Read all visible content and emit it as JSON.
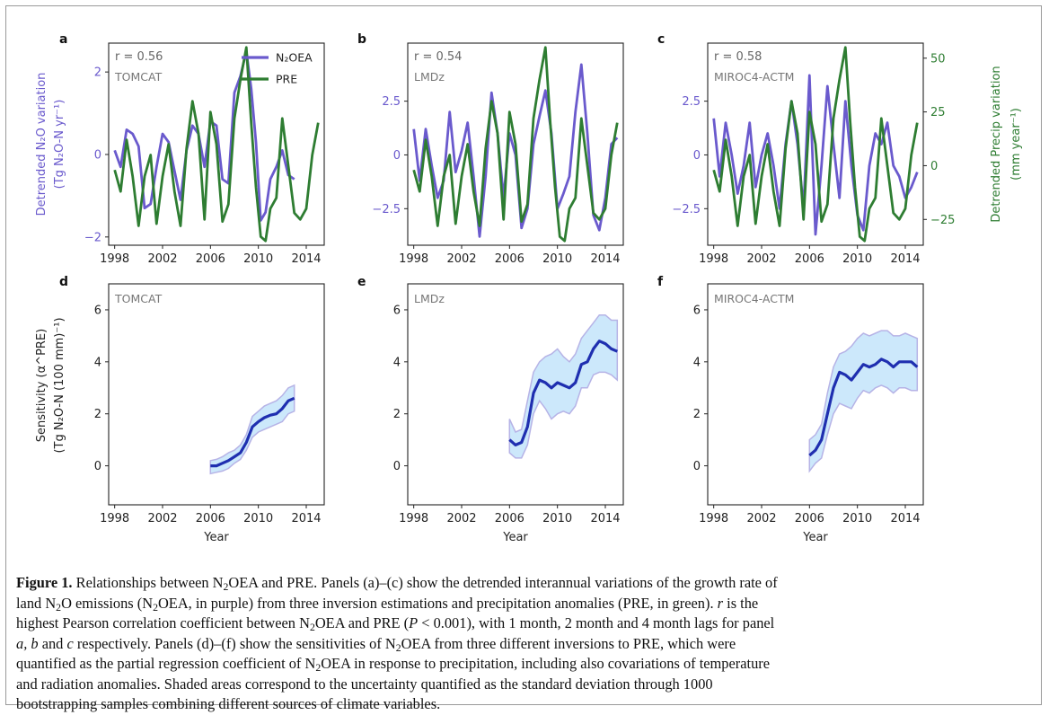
{
  "chart_data": [
    {
      "panel": "a",
      "type": "line",
      "model": "TOMCAT",
      "r_label": "r = 0.56",
      "ylabel_left": "Detrended N₂O variation",
      "ylabel_left_unit": "(Tg N₂O-N yr⁻¹)",
      "left_ylim": [
        -2.2,
        2.7
      ],
      "left_yticks": [
        -2,
        0,
        2
      ],
      "right_ylim": [
        -37,
        57
      ],
      "xlim": [
        1997.5,
        2015.5
      ],
      "xticks": [
        1998,
        2002,
        2006,
        2010,
        2014
      ],
      "legend": [
        {
          "name": "N₂OEA",
          "color": "#6a5acd"
        },
        {
          "name": "PRE",
          "color": "#2e7d32"
        }
      ],
      "series": [
        {
          "name": "N₂OEA",
          "axis": "left",
          "color": "#6a5acd",
          "x": [
            1998.0,
            1998.5,
            1999.0,
            1999.5,
            2000.0,
            2000.5,
            2001.0,
            2001.5,
            2002.0,
            2002.5,
            2003.0,
            2003.5,
            2004.0,
            2004.5,
            2005.0,
            2005.5,
            2006.0,
            2006.5,
            2007.0,
            2007.5,
            2008.0,
            2008.5,
            2009.0,
            2009.4,
            2009.8,
            2010.2,
            2010.6,
            2011.0,
            2011.5,
            2012.0,
            2012.5,
            2013.0
          ],
          "y": [
            0.1,
            -0.3,
            0.6,
            0.5,
            0.2,
            -1.3,
            -1.2,
            -0.3,
            0.5,
            0.3,
            -0.4,
            -1.1,
            0.1,
            0.7,
            0.5,
            -0.3,
            0.8,
            0.7,
            -0.6,
            -0.7,
            1.5,
            1.9,
            2.5,
            1.6,
            0.3,
            -1.6,
            -1.4,
            -0.6,
            -0.3,
            0.1,
            -0.5,
            -0.6
          ]
        },
        {
          "name": "PRE",
          "axis": "right",
          "color": "#2e7d32",
          "x": [
            1998.0,
            1998.5,
            1999.0,
            1999.5,
            2000.0,
            2000.5,
            2001.0,
            2001.5,
            2002.0,
            2002.5,
            2003.0,
            2003.5,
            2004.0,
            2004.5,
            2005.0,
            2005.5,
            2006.0,
            2006.5,
            2007.0,
            2007.5,
            2008.0,
            2008.5,
            2009.0,
            2009.4,
            2009.8,
            2010.2,
            2010.6,
            2011.0,
            2011.5,
            2012.0,
            2012.5,
            2013.0,
            2013.5,
            2014.0,
            2014.5,
            2015.0
          ],
          "y": [
            -2,
            -12,
            12,
            -5,
            -28,
            -5,
            5,
            -27,
            -5,
            10,
            -12,
            -28,
            8,
            30,
            15,
            -25,
            25,
            10,
            -26,
            -18,
            22,
            40,
            55,
            20,
            -10,
            -33,
            -35,
            -20,
            -15,
            22,
            0,
            -22,
            -25,
            -20,
            5,
            20
          ]
        }
      ]
    },
    {
      "panel": "b",
      "type": "line",
      "model": "LMDz",
      "r_label": "r = 0.54",
      "left_ylim": [
        -4.2,
        5.2
      ],
      "left_yticks": [
        -2.5,
        0.0,
        2.5
      ],
      "right_ylim": [
        -37,
        57
      ],
      "xlim": [
        1997.5,
        2015.5
      ],
      "xticks": [
        1998,
        2002,
        2006,
        2010,
        2014
      ],
      "series": [
        {
          "name": "N₂OEA",
          "axis": "left",
          "color": "#6a5acd",
          "x": [
            1998.0,
            1998.5,
            1999.0,
            1999.5,
            2000.0,
            2000.5,
            2001.0,
            2001.5,
            2002.0,
            2002.5,
            2003.0,
            2003.5,
            2004.0,
            2004.5,
            2005.0,
            2005.5,
            2006.0,
            2006.5,
            2007.0,
            2007.5,
            2008.0,
            2008.5,
            2009.0,
            2009.5,
            2010.0,
            2010.5,
            2011.0,
            2011.5,
            2012.0,
            2012.5,
            2013.0,
            2013.5,
            2014.0,
            2014.5,
            2015.0
          ],
          "y": [
            1.2,
            -1.2,
            1.2,
            -0.5,
            -2.0,
            -1.2,
            2.0,
            -0.8,
            0.2,
            1.5,
            -1.0,
            -3.8,
            -1.0,
            2.9,
            1.0,
            -2.0,
            1.0,
            0.0,
            -3.4,
            -2.5,
            0.5,
            1.8,
            3.0,
            1.0,
            -2.5,
            -1.8,
            -1.0,
            2.0,
            4.2,
            1.0,
            -2.8,
            -3.5,
            -2.0,
            0.5,
            0.8
          ]
        },
        {
          "name": "PRE",
          "axis": "right",
          "color": "#2e7d32",
          "x": [
            1998.0,
            1998.5,
            1999.0,
            1999.5,
            2000.0,
            2000.5,
            2001.0,
            2001.5,
            2002.0,
            2002.5,
            2003.0,
            2003.5,
            2004.0,
            2004.5,
            2005.0,
            2005.5,
            2006.0,
            2006.5,
            2007.0,
            2007.5,
            2008.0,
            2008.5,
            2009.0,
            2009.4,
            2009.8,
            2010.2,
            2010.6,
            2011.0,
            2011.5,
            2012.0,
            2012.5,
            2013.0,
            2013.5,
            2014.0,
            2014.5,
            2015.0
          ],
          "y": [
            -2,
            -12,
            12,
            -5,
            -28,
            -5,
            5,
            -27,
            -5,
            10,
            -12,
            -28,
            8,
            30,
            15,
            -25,
            25,
            10,
            -26,
            -18,
            22,
            40,
            55,
            20,
            -10,
            -33,
            -35,
            -20,
            -15,
            22,
            0,
            -22,
            -25,
            -20,
            5,
            20
          ]
        }
      ]
    },
    {
      "panel": "c",
      "type": "line",
      "model": "MIROC4-ACTM",
      "r_label": "r = 0.58",
      "ylabel_right": "Detrended Precip variation",
      "ylabel_right_unit": "(mm year⁻¹)",
      "left_ylim": [
        -4.2,
        5.2
      ],
      "left_yticks": [
        -2.5,
        0.0,
        2.5
      ],
      "right_ylim": [
        -37,
        57
      ],
      "right_yticks": [
        -25,
        0,
        25,
        50
      ],
      "xlim": [
        1997.5,
        2015.5
      ],
      "xticks": [
        1998,
        2002,
        2006,
        2010,
        2014
      ],
      "series": [
        {
          "name": "N₂OEA",
          "axis": "left",
          "color": "#6a5acd",
          "x": [
            1998.0,
            1998.5,
            1999.0,
            1999.5,
            2000.0,
            2000.5,
            2001.0,
            2001.5,
            2002.0,
            2002.5,
            2003.0,
            2003.5,
            2004.0,
            2004.5,
            2005.0,
            2005.5,
            2006.0,
            2006.5,
            2007.0,
            2007.5,
            2008.0,
            2008.5,
            2009.0,
            2009.5,
            2010.0,
            2010.5,
            2011.0,
            2011.5,
            2012.0,
            2012.5,
            2013.0,
            2013.5,
            2014.0,
            2014.5,
            2015.0
          ],
          "y": [
            1.7,
            -1.0,
            1.5,
            0.0,
            -1.8,
            -0.5,
            1.5,
            -1.5,
            0.0,
            1.0,
            -0.5,
            -2.5,
            0.5,
            2.5,
            0.5,
            -2.5,
            3.7,
            -3.7,
            -0.5,
            3.2,
            0.5,
            -2.0,
            2.5,
            -0.5,
            -2.8,
            -3.5,
            -0.5,
            1.0,
            0.5,
            1.5,
            -0.5,
            -1.0,
            -2.0,
            -1.5,
            -0.8
          ]
        },
        {
          "name": "PRE",
          "axis": "right",
          "color": "#2e7d32",
          "x": [
            1998.0,
            1998.5,
            1999.0,
            1999.5,
            2000.0,
            2000.5,
            2001.0,
            2001.5,
            2002.0,
            2002.5,
            2003.0,
            2003.5,
            2004.0,
            2004.5,
            2005.0,
            2005.5,
            2006.0,
            2006.5,
            2007.0,
            2007.5,
            2008.0,
            2008.5,
            2009.0,
            2009.4,
            2009.8,
            2010.2,
            2010.6,
            2011.0,
            2011.5,
            2012.0,
            2012.5,
            2013.0,
            2013.5,
            2014.0,
            2014.5,
            2015.0
          ],
          "y": [
            -2,
            -12,
            12,
            -5,
            -28,
            -5,
            5,
            -27,
            -5,
            10,
            -12,
            -28,
            8,
            30,
            15,
            -25,
            25,
            10,
            -26,
            -18,
            22,
            40,
            55,
            20,
            -10,
            -33,
            -35,
            -20,
            -15,
            22,
            0,
            -22,
            -25,
            -20,
            5,
            20
          ]
        }
      ]
    },
    {
      "panel": "d",
      "type": "area",
      "model": "TOMCAT",
      "ylabel": "Sensitivity (α^PRE)",
      "ylabel_unit": "(Tg N₂O-N (100 mm)⁻¹)",
      "xlabel": "Year",
      "ylim": [
        -1.5,
        7.0
      ],
      "yticks": [
        0,
        2,
        4,
        6
      ],
      "xlim": [
        1997.5,
        2015.5
      ],
      "xticks": [
        1998,
        2002,
        2006,
        2010,
        2014
      ],
      "x": [
        2006,
        2006.5,
        2007,
        2007.5,
        2008,
        2008.5,
        2009,
        2009.5,
        2010,
        2010.5,
        2011,
        2011.5,
        2012,
        2012.5,
        2013
      ],
      "mean": [
        0.0,
        0.0,
        0.1,
        0.2,
        0.35,
        0.5,
        0.9,
        1.5,
        1.7,
        1.85,
        1.95,
        2.0,
        2.2,
        2.5,
        2.6
      ],
      "lower": [
        -0.3,
        -0.25,
        -0.2,
        -0.1,
        0.1,
        0.25,
        0.6,
        1.1,
        1.3,
        1.4,
        1.5,
        1.6,
        1.7,
        2.0,
        2.1
      ],
      "upper": [
        0.2,
        0.25,
        0.35,
        0.5,
        0.6,
        0.8,
        1.2,
        1.9,
        2.1,
        2.3,
        2.4,
        2.5,
        2.7,
        3.0,
        3.1
      ]
    },
    {
      "panel": "e",
      "type": "area",
      "model": "LMDz",
      "xlabel": "Year",
      "ylim": [
        -1.5,
        7.0
      ],
      "yticks": [
        0,
        2,
        4,
        6
      ],
      "xlim": [
        1997.5,
        2015.5
      ],
      "xticks": [
        1998,
        2002,
        2006,
        2010,
        2014
      ],
      "x": [
        2006,
        2006.5,
        2007,
        2007.5,
        2008,
        2008.5,
        2009,
        2009.5,
        2010,
        2010.5,
        2011,
        2011.5,
        2012,
        2012.5,
        2013,
        2013.5,
        2014,
        2014.5,
        2015
      ],
      "mean": [
        1.0,
        0.8,
        0.9,
        1.5,
        2.8,
        3.3,
        3.2,
        3.0,
        3.2,
        3.1,
        3.0,
        3.2,
        3.9,
        4.0,
        4.5,
        4.8,
        4.7,
        4.5,
        4.4
      ],
      "lower": [
        0.5,
        0.3,
        0.3,
        0.8,
        2.0,
        2.5,
        2.2,
        1.8,
        2.0,
        2.1,
        2.0,
        2.3,
        3.0,
        3.0,
        3.5,
        3.6,
        3.6,
        3.5,
        3.3
      ],
      "upper": [
        1.8,
        1.3,
        1.4,
        2.5,
        3.6,
        4.0,
        4.2,
        4.3,
        4.5,
        4.2,
        4.0,
        4.3,
        4.9,
        5.2,
        5.5,
        5.8,
        5.8,
        5.6,
        5.6
      ]
    },
    {
      "panel": "f",
      "type": "area",
      "model": "MIROC4-ACTM",
      "xlabel": "Year",
      "ylim": [
        -1.5,
        7.0
      ],
      "yticks": [
        0,
        2,
        4,
        6
      ],
      "xlim": [
        1997.5,
        2015.5
      ],
      "xticks": [
        1998,
        2002,
        2006,
        2010,
        2014
      ],
      "x": [
        2006,
        2006.5,
        2007,
        2007.5,
        2008,
        2008.5,
        2009,
        2009.5,
        2010,
        2010.5,
        2011,
        2011.5,
        2012,
        2012.5,
        2013,
        2013.5,
        2014,
        2014.5,
        2015
      ],
      "mean": [
        0.4,
        0.6,
        1.0,
        2.0,
        3.0,
        3.6,
        3.5,
        3.3,
        3.6,
        3.9,
        3.8,
        3.9,
        4.1,
        4.0,
        3.8,
        4.0,
        4.0,
        4.0,
        3.8
      ],
      "lower": [
        -0.2,
        0.1,
        0.3,
        1.2,
        2.0,
        2.4,
        2.3,
        2.2,
        2.6,
        2.9,
        2.8,
        3.0,
        3.1,
        3.0,
        2.8,
        3.0,
        3.0,
        2.9,
        2.9
      ],
      "upper": [
        1.0,
        1.2,
        1.6,
        2.8,
        3.8,
        4.3,
        4.4,
        4.6,
        4.9,
        5.1,
        5.0,
        5.1,
        5.2,
        5.2,
        5.0,
        5.0,
        5.1,
        5.0,
        4.9
      ]
    }
  ],
  "caption": {
    "label": "Figure 1.",
    "line1": [
      "Relationships between N",
      "2",
      "OEA and PRE. Panels (a)–(c) show the detrended interannual variations of the growth rate of"
    ],
    "line2": [
      "land N",
      "2",
      "O emissions (N",
      "2",
      "OEA, in purple) from three inversion estimations and precipitation anomalies (PRE, in green). ",
      "r",
      " is the"
    ],
    "line3": [
      "highest Pearson correlation coefficient between N",
      "2",
      "OEA and PRE (",
      "P",
      " < 0.001), with 1 month, 2 month and 4 month lags for panel"
    ],
    "line4": [
      "a, b",
      " and ",
      "c",
      " respectively. Panels (d)–(f) show the sensitivities of N",
      "2",
      "OEA from three different inversions to PRE, which were"
    ],
    "line5": [
      "quantified as the partial regression coefficient of N",
      "2",
      "OEA in response to precipitation, including also covariations of temperature"
    ],
    "line6": "and radiation anomalies. Shaded areas correspond to the uncertainty quantified as the standard deviation through 1000",
    "line7": "bootstrapping samples combining different sources of climate variables."
  }
}
